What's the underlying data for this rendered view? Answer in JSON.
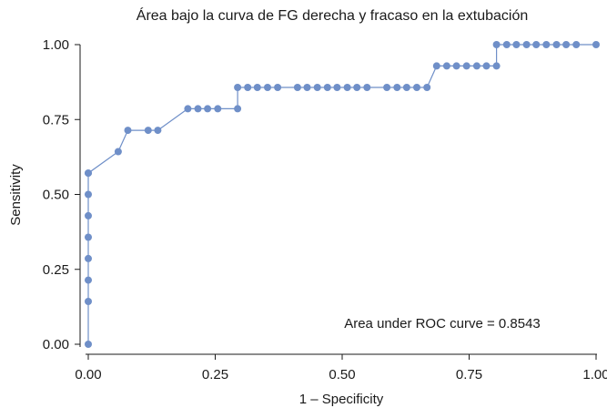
{
  "chart_data": {
    "type": "line",
    "title": "Área bajo la curva de FG derecha y fracaso en la extubación",
    "xlabel": "1 – Specificity",
    "ylabel": "Sensitivity",
    "xlim": [
      0,
      1
    ],
    "ylim": [
      0,
      1
    ],
    "xticks": [
      "0.00",
      "0.25",
      "0.50",
      "0.75",
      "1.00"
    ],
    "yticks": [
      "0.00",
      "0.25",
      "0.50",
      "0.75",
      "1.00"
    ],
    "annotation": "Area under ROC curve = 0.8543",
    "grid": false,
    "color": "#6f8fc8",
    "series": [
      {
        "x": [
          0,
          0,
          0,
          0,
          0,
          0,
          0,
          0,
          0,
          0.059,
          0.078,
          0.118,
          0.137,
          0.196,
          0.216,
          0.235,
          0.255,
          0.294,
          0.294,
          0.314,
          0.333,
          0.353,
          0.373,
          0.412,
          0.431,
          0.451,
          0.471,
          0.49,
          0.51,
          0.529,
          0.549,
          0.588,
          0.608,
          0.627,
          0.647,
          0.667,
          0.686,
          0.706,
          0.725,
          0.745,
          0.765,
          0.784,
          0.804,
          0.804,
          0.824,
          0.843,
          0.863,
          0.882,
          0.902,
          0.922,
          0.941,
          0.961,
          1.0
        ],
        "y": [
          0,
          0.143,
          0.214,
          0.286,
          0.357,
          0.429,
          0.5,
          0.571,
          0.571,
          0.643,
          0.714,
          0.714,
          0.714,
          0.786,
          0.786,
          0.786,
          0.786,
          0.786,
          0.857,
          0.857,
          0.857,
          0.857,
          0.857,
          0.857,
          0.857,
          0.857,
          0.857,
          0.857,
          0.857,
          0.857,
          0.857,
          0.857,
          0.857,
          0.857,
          0.857,
          0.857,
          0.929,
          0.929,
          0.929,
          0.929,
          0.929,
          0.929,
          0.929,
          1.0,
          1.0,
          1.0,
          1.0,
          1.0,
          1.0,
          1.0,
          1.0,
          1.0,
          1.0
        ]
      }
    ]
  }
}
